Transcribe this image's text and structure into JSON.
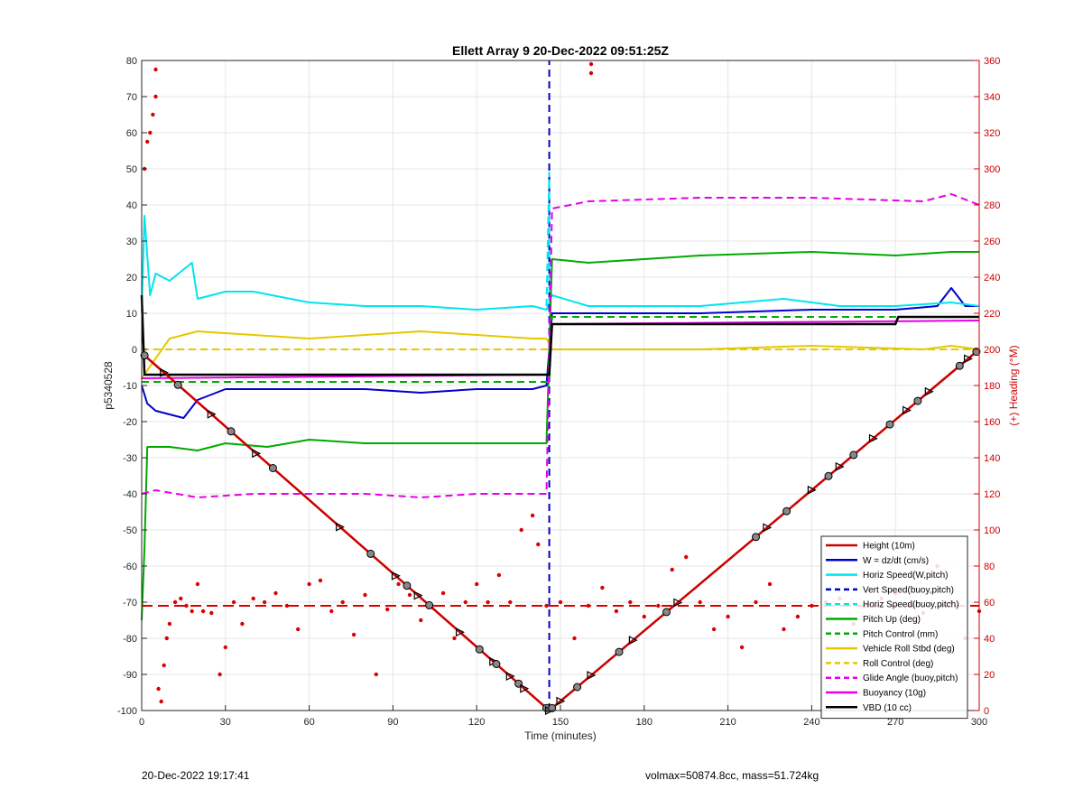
{
  "chart_data": {
    "type": "line",
    "title": "Ellett Array 9 20-Dec-2022 09:51:25Z",
    "xlabel": "Time (minutes)",
    "ylabel_left": "p5340528",
    "ylabel_right": "(+) Heading (°M)",
    "xlim": [
      0,
      300
    ],
    "ylim_left": [
      -100,
      80
    ],
    "ylim_right": [
      0,
      360
    ],
    "x_ticks": [
      "0",
      "30",
      "60",
      "90",
      "120",
      "150",
      "180",
      "210",
      "240",
      "270",
      "300"
    ],
    "y_ticks_left": [
      "-100",
      "-90",
      "-80",
      "-70",
      "-60",
      "-50",
      "-40",
      "-30",
      "-20",
      "-10",
      "0",
      "10",
      "20",
      "30",
      "40",
      "50",
      "60",
      "70",
      "80"
    ],
    "y_ticks_right": [
      "0",
      "20",
      "40",
      "60",
      "80",
      "100",
      "120",
      "140",
      "160",
      "180",
      "200",
      "220",
      "240",
      "260",
      "280",
      "300",
      "320",
      "340",
      "360"
    ],
    "grid": true,
    "legend_position": "bottom-right",
    "colors": {
      "height": "#cc0000",
      "w": "#0000cc",
      "horiz_speed_w": "#00e5ee",
      "vert_speed": "#0000cc",
      "horiz_speed_buoy": "#00e5ee",
      "pitch": "#00aa00",
      "pitch_control": "#00aa00",
      "roll": "#e6c800",
      "roll_control": "#e6c800",
      "glide_angle": "#e600e6",
      "buoyancy": "#e600e6",
      "vbd": "#000000",
      "heading": "#dd0000",
      "grid": "#e6e6e6",
      "right_axis": "#cc0000"
    },
    "series": [
      {
        "name": "Height (10m)",
        "key": "height",
        "style": "solid",
        "x": [
          0,
          146,
          300
        ],
        "y": [
          -1,
          -100,
          0
        ]
      },
      {
        "name": "W = dz/dt (cm/s)",
        "key": "w",
        "style": "solid",
        "x": [
          0,
          2,
          5,
          10,
          15,
          20,
          30,
          50,
          80,
          100,
          120,
          140,
          145,
          147,
          160,
          200,
          240,
          270,
          285,
          290,
          295,
          300
        ],
        "y": [
          -10,
          -15,
          -17,
          -18,
          -19,
          -14,
          -11,
          -11,
          -11,
          -12,
          -11,
          -11,
          -10,
          10,
          10,
          10,
          11,
          11,
          12,
          17,
          12,
          12
        ]
      },
      {
        "name": "Horiz Speed(W,pitch)",
        "key": "horiz_speed_w",
        "style": "solid",
        "x": [
          0,
          1,
          3,
          5,
          10,
          18,
          20,
          30,
          40,
          60,
          80,
          100,
          120,
          140,
          145,
          147,
          160,
          200,
          230,
          250,
          270,
          290,
          300
        ],
        "y": [
          10,
          37,
          15,
          21,
          19,
          24,
          14,
          16,
          16,
          13,
          12,
          12,
          11,
          12,
          11,
          15,
          12,
          12,
          14,
          12,
          12,
          13,
          12
        ]
      },
      {
        "name": "Vert Speed(buoy,pitch)",
        "key": "vert_speed",
        "style": "dashed",
        "x": [
          146,
          146
        ],
        "y": [
          -100,
          80
        ]
      },
      {
        "name": "Horiz Speed(buoy,pitch)",
        "key": "horiz_speed_buoy",
        "style": "dashed",
        "x": [
          145,
          146,
          146
        ],
        "y": [
          12,
          49,
          12
        ]
      },
      {
        "name": "Pitch Up (deg)",
        "key": "pitch",
        "style": "solid",
        "x": [
          0,
          1,
          2,
          10,
          20,
          30,
          45,
          60,
          80,
          100,
          120,
          145,
          147,
          160,
          180,
          200,
          240,
          270,
          290,
          300
        ],
        "y": [
          -75,
          -55,
          -27,
          -27,
          -28,
          -26,
          -27,
          -25,
          -26,
          -26,
          -26,
          -26,
          25,
          24,
          25,
          26,
          27,
          26,
          27,
          27
        ]
      },
      {
        "name": "Pitch Control (mm)",
        "key": "pitch_control",
        "style": "dashed",
        "x": [
          0,
          145,
          146,
          147,
          300
        ],
        "y": [
          -9,
          -9,
          -9,
          9,
          9
        ]
      },
      {
        "name": "Vehicle Roll Stbd (deg)",
        "key": "roll",
        "style": "solid",
        "x": [
          0,
          10,
          20,
          40,
          60,
          80,
          100,
          120,
          140,
          145,
          147,
          160,
          200,
          240,
          280,
          290,
          300
        ],
        "y": [
          -8,
          3,
          5,
          4,
          3,
          4,
          5,
          4,
          3,
          3,
          0,
          0,
          0,
          1,
          0,
          1,
          0
        ]
      },
      {
        "name": "Roll Control (deg)",
        "key": "roll_control",
        "style": "dashed",
        "x": [
          0,
          145,
          147,
          300
        ],
        "y": [
          0,
          0,
          0,
          0
        ]
      },
      {
        "name": "Glide Angle (buoy,pitch)",
        "key": "glide_angle",
        "style": "dashed",
        "x": [
          0,
          5,
          20,
          40,
          60,
          80,
          100,
          120,
          140,
          145,
          147,
          160,
          200,
          240,
          280,
          290,
          300
        ],
        "y": [
          -40,
          -39,
          -41,
          -40,
          -40,
          -40,
          -41,
          -40,
          -40,
          -40,
          39,
          41,
          42,
          42,
          41,
          43,
          40
        ]
      },
      {
        "name": "Buoyancy (10g)",
        "key": "buoyancy",
        "style": "solid",
        "x": [
          0,
          145,
          146,
          147,
          300
        ],
        "y": [
          -8,
          -7,
          -7,
          7,
          8
        ]
      },
      {
        "name": "VBD (10 cc)",
        "key": "vbd",
        "style": "solid",
        "x": [
          0,
          1,
          145,
          146,
          147,
          270,
          271,
          300
        ],
        "y": [
          15,
          -7,
          -7,
          -7,
          7,
          7,
          9,
          9
        ]
      }
    ],
    "heading_points": {
      "axis": "right",
      "name": "(+) Heading (°M)",
      "x": [
        1,
        2,
        3,
        4,
        5,
        5,
        6,
        7,
        8,
        9,
        10,
        12,
        14,
        16,
        18,
        20,
        22,
        25,
        28,
        30,
        33,
        36,
        40,
        44,
        48,
        52,
        56,
        60,
        64,
        68,
        72,
        76,
        80,
        84,
        88,
        92,
        96,
        100,
        104,
        108,
        112,
        116,
        120,
        124,
        128,
        132,
        136,
        140,
        142,
        145,
        150,
        155,
        160,
        165,
        170,
        175,
        180,
        185,
        190,
        195,
        200,
        205,
        210,
        215,
        220,
        225,
        230,
        235,
        240,
        245,
        250,
        255,
        260,
        265,
        270,
        275,
        280,
        285,
        290,
        295,
        300
      ],
      "y": [
        300,
        315,
        320,
        330,
        340,
        355,
        12,
        5,
        25,
        40,
        48,
        60,
        62,
        58,
        55,
        70,
        55,
        54,
        20,
        35,
        60,
        48,
        62,
        60,
        65,
        58,
        45,
        70,
        72,
        55,
        60,
        42,
        64,
        20,
        56,
        70,
        64,
        50,
        58,
        65,
        40,
        60,
        70,
        60,
        75,
        60,
        100,
        108,
        92,
        58,
        60,
        40,
        58,
        68,
        55,
        60,
        52,
        58,
        78,
        85,
        60,
        45,
        52,
        35,
        60,
        70,
        45,
        52,
        58,
        60,
        62,
        48,
        58,
        62,
        65,
        58,
        54,
        80,
        60,
        40,
        55
      ]
    },
    "heading_mean": {
      "axis": "right",
      "value": 58,
      "style": "dashed"
    },
    "heading_outliers": {
      "axis": "right",
      "x": [
        161,
        161
      ],
      "y": [
        358,
        353
      ]
    },
    "height_markers": {
      "x": [
        1,
        8,
        13,
        25,
        32,
        41,
        47,
        71,
        82,
        91,
        95,
        99,
        103,
        114,
        121,
        126,
        127,
        132,
        135,
        137,
        145,
        146,
        147,
        150,
        156,
        161,
        171,
        176,
        188,
        192,
        220,
        224,
        231,
        240,
        246,
        250,
        255,
        262,
        268,
        274,
        278,
        282,
        293,
        296,
        299
      ]
    }
  },
  "footer": {
    "left": "20-Dec-2022 19:17:41",
    "right": "volmax=50874.8cc, mass=51.724kg"
  }
}
